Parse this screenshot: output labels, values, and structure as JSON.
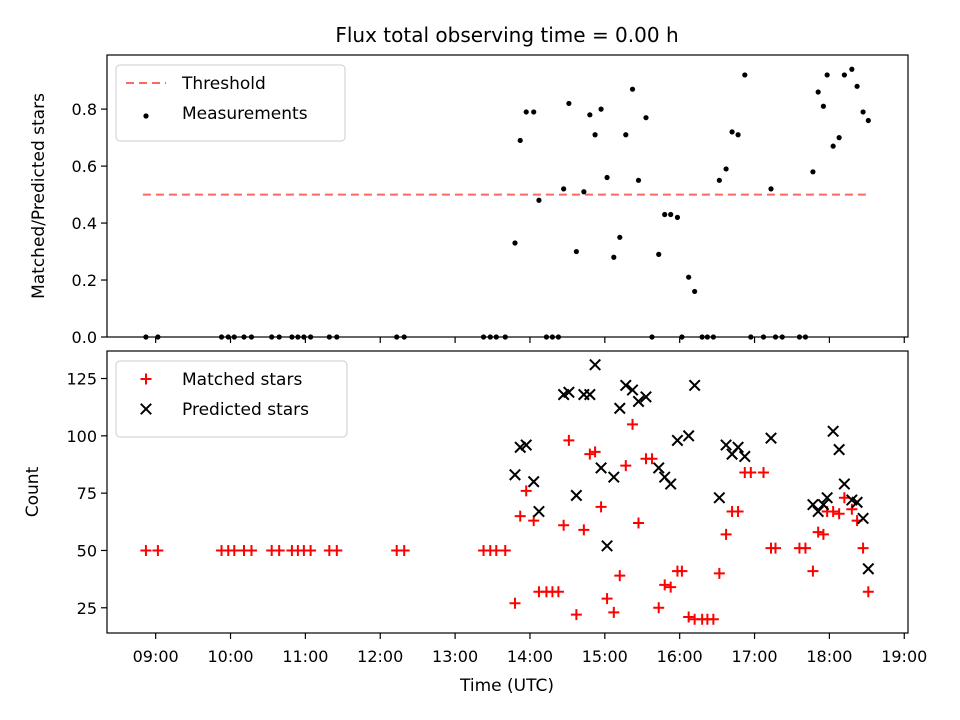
{
  "chart_data": {
    "title": "Flux total observing time = 0.00 h",
    "xlabel": "Time (UTC)",
    "x_unit": "UTC hour of day",
    "xlim": [
      8.35,
      19.05
    ],
    "xticks": [
      9,
      10,
      11,
      12,
      13,
      14,
      15,
      16,
      17,
      18,
      19
    ],
    "xtick_labels": [
      "09:00",
      "10:00",
      "11:00",
      "12:00",
      "13:00",
      "14:00",
      "15:00",
      "16:00",
      "17:00",
      "18:00",
      "19:00"
    ],
    "panels": [
      {
        "name": "ratio",
        "type": "scatter",
        "ylabel": "Matched/Predicted stars",
        "ylim": [
          0,
          0.99
        ],
        "yticks": [
          0.0,
          0.2,
          0.4,
          0.6,
          0.8
        ],
        "ytick_labels": [
          "0.0",
          "0.2",
          "0.4",
          "0.6",
          "0.8"
        ],
        "legend_position": "upper-left",
        "threshold": {
          "name": "Threshold",
          "y": 0.5,
          "x_range": [
            8.83,
            18.55
          ],
          "color": "#ff6666",
          "style": "dashed"
        },
        "series": [
          {
            "name": "Measurements",
            "color": "#000000",
            "marker": "dot",
            "points": [
              [
                8.87,
                0.0
              ],
              [
                9.03,
                0.0
              ],
              [
                9.88,
                0.0
              ],
              [
                9.97,
                0.0
              ],
              [
                10.05,
                0.0
              ],
              [
                10.18,
                0.0
              ],
              [
                10.28,
                0.0
              ],
              [
                10.55,
                0.0
              ],
              [
                10.65,
                0.0
              ],
              [
                10.82,
                0.0
              ],
              [
                10.9,
                0.0
              ],
              [
                10.98,
                0.0
              ],
              [
                11.07,
                0.0
              ],
              [
                11.32,
                0.0
              ],
              [
                11.42,
                0.0
              ],
              [
                12.22,
                0.0
              ],
              [
                12.32,
                0.0
              ],
              [
                13.38,
                0.0
              ],
              [
                13.47,
                0.0
              ],
              [
                13.55,
                0.0
              ],
              [
                13.67,
                0.0
              ],
              [
                13.8,
                0.33
              ],
              [
                13.87,
                0.69
              ],
              [
                13.95,
                0.79
              ],
              [
                14.05,
                0.79
              ],
              [
                14.12,
                0.48
              ],
              [
                14.22,
                0.0
              ],
              [
                14.3,
                0.0
              ],
              [
                14.38,
                0.0
              ],
              [
                14.45,
                0.52
              ],
              [
                14.52,
                0.82
              ],
              [
                14.62,
                0.3
              ],
              [
                14.72,
                0.51
              ],
              [
                14.8,
                0.78
              ],
              [
                14.87,
                0.71
              ],
              [
                14.95,
                0.8
              ],
              [
                15.03,
                0.56
              ],
              [
                15.12,
                0.28
              ],
              [
                15.2,
                0.35
              ],
              [
                15.28,
                0.71
              ],
              [
                15.37,
                0.87
              ],
              [
                15.45,
                0.55
              ],
              [
                15.55,
                0.77
              ],
              [
                15.63,
                0.0
              ],
              [
                15.72,
                0.29
              ],
              [
                15.8,
                0.43
              ],
              [
                15.88,
                0.43
              ],
              [
                15.97,
                0.42
              ],
              [
                16.03,
                0.0
              ],
              [
                16.12,
                0.21
              ],
              [
                16.2,
                0.16
              ],
              [
                16.3,
                0.0
              ],
              [
                16.37,
                0.0
              ],
              [
                16.45,
                0.0
              ],
              [
                16.53,
                0.55
              ],
              [
                16.62,
                0.59
              ],
              [
                16.7,
                0.72
              ],
              [
                16.78,
                0.71
              ],
              [
                16.87,
                0.92
              ],
              [
                16.95,
                0.0
              ],
              [
                17.12,
                0.0
              ],
              [
                17.22,
                0.52
              ],
              [
                17.28,
                0.0
              ],
              [
                17.37,
                0.0
              ],
              [
                17.6,
                0.0
              ],
              [
                17.68,
                0.0
              ],
              [
                17.78,
                0.58
              ],
              [
                17.85,
                0.86
              ],
              [
                17.92,
                0.81
              ],
              [
                17.97,
                0.92
              ],
              [
                18.05,
                0.67
              ],
              [
                18.13,
                0.7
              ],
              [
                18.2,
                0.92
              ],
              [
                18.3,
                0.94
              ],
              [
                18.37,
                0.88
              ],
              [
                18.45,
                0.79
              ],
              [
                18.52,
                0.76
              ]
            ]
          }
        ]
      },
      {
        "name": "counts",
        "type": "scatter",
        "ylabel": "Count",
        "ylim": [
          14,
          137
        ],
        "yticks": [
          25,
          50,
          75,
          100,
          125
        ],
        "ytick_labels": [
          "25",
          "50",
          "75",
          "100",
          "125"
        ],
        "legend_position": "upper-left",
        "series": [
          {
            "name": "Matched stars",
            "color": "#ff0000",
            "marker": "plus",
            "points": [
              [
                8.87,
                50
              ],
              [
                9.03,
                50
              ],
              [
                9.88,
                50
              ],
              [
                9.97,
                50
              ],
              [
                10.05,
                50
              ],
              [
                10.18,
                50
              ],
              [
                10.28,
                50
              ],
              [
                10.55,
                50
              ],
              [
                10.65,
                50
              ],
              [
                10.82,
                50
              ],
              [
                10.9,
                50
              ],
              [
                10.98,
                50
              ],
              [
                11.07,
                50
              ],
              [
                11.32,
                50
              ],
              [
                11.42,
                50
              ],
              [
                12.22,
                50
              ],
              [
                12.32,
                50
              ],
              [
                13.38,
                50
              ],
              [
                13.47,
                50
              ],
              [
                13.55,
                50
              ],
              [
                13.67,
                50
              ],
              [
                13.8,
                27
              ],
              [
                13.87,
                65
              ],
              [
                13.95,
                76
              ],
              [
                14.05,
                63
              ],
              [
                14.12,
                32
              ],
              [
                14.22,
                32
              ],
              [
                14.3,
                32
              ],
              [
                14.38,
                32
              ],
              [
                14.45,
                61
              ],
              [
                14.52,
                98
              ],
              [
                14.62,
                22
              ],
              [
                14.72,
                59
              ],
              [
                14.8,
                92
              ],
              [
                14.87,
                93
              ],
              [
                14.95,
                69
              ],
              [
                15.03,
                29
              ],
              [
                15.12,
                23
              ],
              [
                15.2,
                39
              ],
              [
                15.28,
                87
              ],
              [
                15.37,
                105
              ],
              [
                15.45,
                62
              ],
              [
                15.55,
                90
              ],
              [
                15.63,
                90
              ],
              [
                15.72,
                25
              ],
              [
                15.8,
                35
              ],
              [
                15.88,
                34
              ],
              [
                15.97,
                41
              ],
              [
                16.03,
                41
              ],
              [
                16.12,
                21
              ],
              [
                16.2,
                20
              ],
              [
                16.3,
                20
              ],
              [
                16.37,
                20
              ],
              [
                16.45,
                20
              ],
              [
                16.53,
                40
              ],
              [
                16.62,
                57
              ],
              [
                16.7,
                67
              ],
              [
                16.78,
                67
              ],
              [
                16.87,
                84
              ],
              [
                16.95,
                84
              ],
              [
                17.12,
                84
              ],
              [
                17.22,
                51
              ],
              [
                17.28,
                51
              ],
              [
                17.6,
                51
              ],
              [
                17.68,
                51
              ],
              [
                17.78,
                41
              ],
              [
                17.85,
                58
              ],
              [
                17.92,
                57
              ],
              [
                17.97,
                67
              ],
              [
                18.05,
                67
              ],
              [
                18.13,
                66
              ],
              [
                18.2,
                73
              ],
              [
                18.3,
                68
              ],
              [
                18.37,
                63
              ],
              [
                18.45,
                51
              ],
              [
                18.52,
                32
              ]
            ]
          },
          {
            "name": "Predicted stars",
            "color": "#000000",
            "marker": "x",
            "points": [
              [
                13.8,
                83
              ],
              [
                13.87,
                95
              ],
              [
                13.95,
                96
              ],
              [
                14.05,
                80
              ],
              [
                14.12,
                67
              ],
              [
                14.45,
                118
              ],
              [
                14.52,
                119
              ],
              [
                14.62,
                74
              ],
              [
                14.72,
                118
              ],
              [
                14.8,
                118
              ],
              [
                14.87,
                131
              ],
              [
                14.95,
                86
              ],
              [
                15.03,
                52
              ],
              [
                15.12,
                82
              ],
              [
                15.2,
                112
              ],
              [
                15.28,
                122
              ],
              [
                15.37,
                120
              ],
              [
                15.45,
                115
              ],
              [
                15.55,
                117
              ],
              [
                15.72,
                86
              ],
              [
                15.8,
                82
              ],
              [
                15.88,
                79
              ],
              [
                15.97,
                98
              ],
              [
                16.12,
                100
              ],
              [
                16.2,
                122
              ],
              [
                16.53,
                73
              ],
              [
                16.62,
                96
              ],
              [
                16.7,
                92
              ],
              [
                16.78,
                95
              ],
              [
                16.87,
                91
              ],
              [
                17.22,
                99
              ],
              [
                17.78,
                70
              ],
              [
                17.85,
                67
              ],
              [
                17.92,
                70
              ],
              [
                17.97,
                73
              ],
              [
                18.05,
                102
              ],
              [
                18.13,
                94
              ],
              [
                18.2,
                79
              ],
              [
                18.3,
                72
              ],
              [
                18.37,
                71
              ],
              [
                18.45,
                64
              ],
              [
                18.52,
                42
              ]
            ]
          }
        ]
      }
    ]
  }
}
